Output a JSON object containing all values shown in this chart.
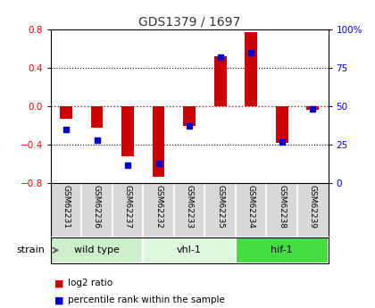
{
  "title": "GDS1379 / 1697",
  "samples": [
    "GSM62231",
    "GSM62236",
    "GSM62237",
    "GSM62232",
    "GSM62233",
    "GSM62235",
    "GSM62234",
    "GSM62238",
    "GSM62239"
  ],
  "log2_ratio": [
    -0.13,
    -0.22,
    -0.52,
    -0.73,
    -0.2,
    0.52,
    0.77,
    -0.38,
    -0.04
  ],
  "percentile_rank": [
    35,
    28,
    12,
    13,
    37,
    82,
    85,
    27,
    48
  ],
  "groups": [
    {
      "label": "wild type",
      "start": 0,
      "end": 3,
      "color": "#ccf0cc"
    },
    {
      "label": "vhl-1",
      "start": 3,
      "end": 6,
      "color": "#ddf8dd"
    },
    {
      "label": "hif-1",
      "start": 6,
      "end": 9,
      "color": "#44dd44"
    }
  ],
  "ylim": [
    -0.8,
    0.8
  ],
  "yticks": [
    -0.8,
    -0.4,
    0.0,
    0.4,
    0.8
  ],
  "right_yticks": [
    0,
    25,
    50,
    75,
    100
  ],
  "bar_color": "#cc0000",
  "dot_color": "#0000cc",
  "sample_bg": "#d8d8d8",
  "title_color": "#333333",
  "legend_red": "log2 ratio",
  "legend_blue": "percentile rank within the sample"
}
